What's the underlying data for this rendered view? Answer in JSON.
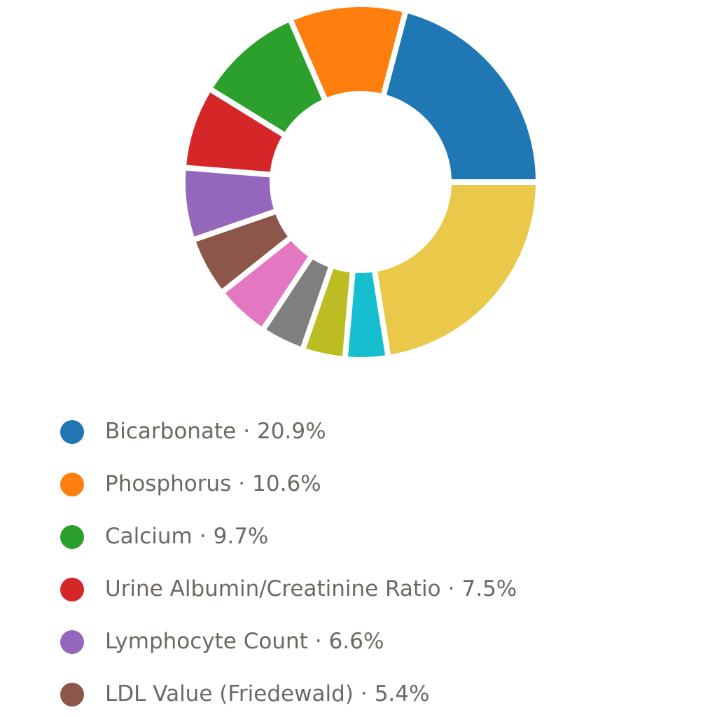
{
  "chart_data": {
    "type": "donut",
    "categories": [
      "Bicarbonate",
      "Phosphorus",
      "Calcium",
      "Urine Albumin/Creatinine Ratio",
      "Lymphocyte Count",
      "LDL Value (Friedewald)",
      null,
      null,
      null,
      null,
      null
    ],
    "values": [
      20.9,
      10.6,
      9.7,
      7.5,
      6.6,
      5.4,
      5,
      4,
      3.9,
      3.9,
      22.5
    ],
    "value_labels": [
      "20.9%",
      "10.6%",
      "9.7%",
      "7.5%",
      "6.6%",
      "5.4%",
      null,
      null,
      null,
      null,
      null
    ],
    "colors": [
      "#1f77b4",
      "#ff7f0e",
      "#2ca02c",
      "#d62728",
      "#9467bd",
      "#8c564b",
      "#e377c2",
      "#7f7f7f",
      "#bcbd22",
      "#17becf",
      "#e9c84a"
    ],
    "legend_separator": "·"
  }
}
